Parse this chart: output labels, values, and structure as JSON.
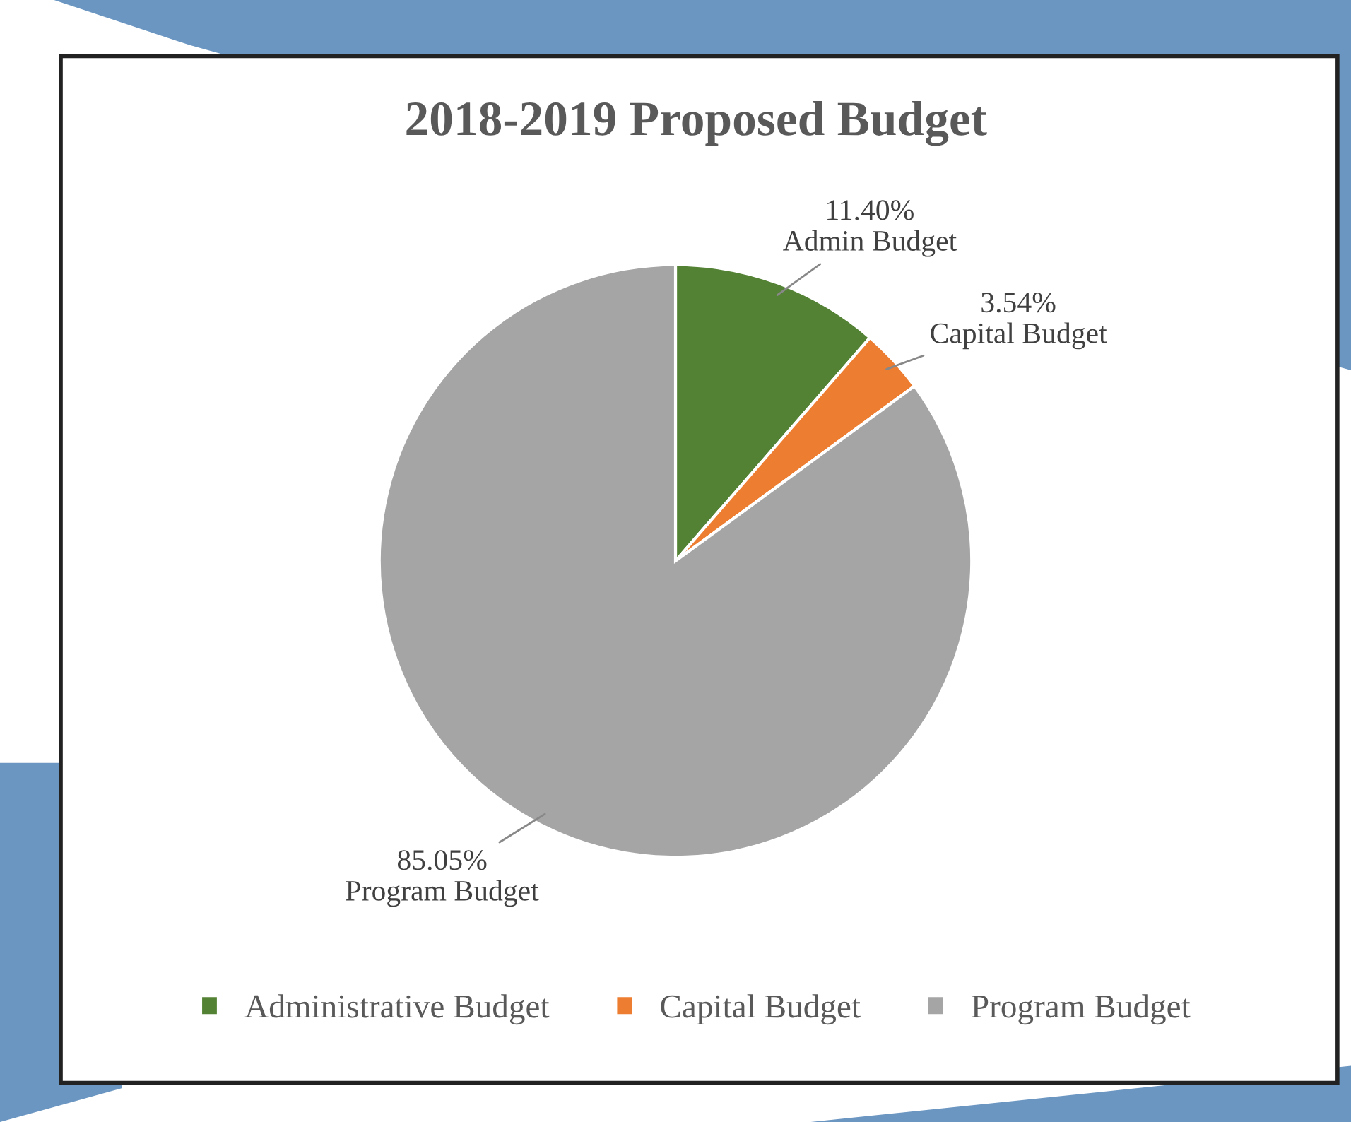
{
  "chart_data": {
    "type": "pie",
    "title": "2018-2019 Proposed Budget",
    "categories": [
      "Administrative Budget",
      "Capital Budget",
      "Program Budget"
    ],
    "values": [
      11.4,
      3.54,
      85.05
    ],
    "colors": [
      "#548235",
      "#ed7d31",
      "#a5a5a5"
    ],
    "value_labels": [
      "11.40%\nAdmin Budget",
      "3.54%\nCapital Budget",
      "85.05%\nProgram Budget"
    ],
    "legend": "bottom"
  }
}
